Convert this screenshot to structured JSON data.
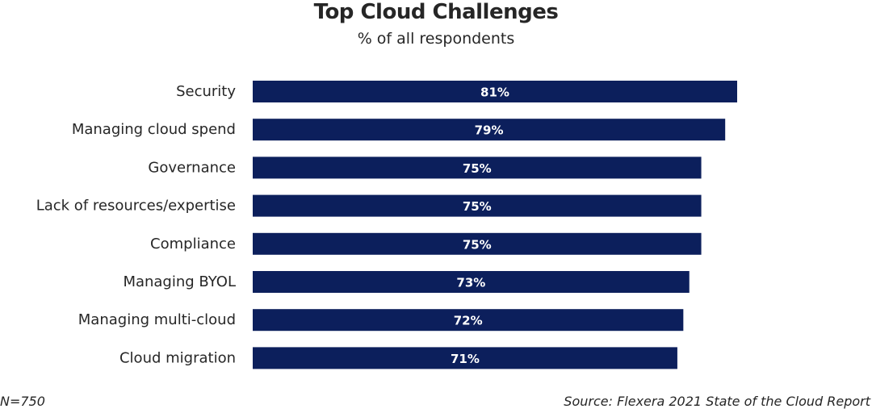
{
  "chart_data": {
    "type": "bar",
    "orientation": "horizontal",
    "title": "Top Cloud Challenges",
    "subtitle": "% of all respondents",
    "categories": [
      "Security",
      "Managing cloud spend",
      "Governance",
      "Lack of resources/expertise",
      "Compliance",
      "Managing BYOL",
      "Managing multi-cloud",
      "Cloud migration"
    ],
    "values": [
      81,
      79,
      75,
      75,
      75,
      73,
      72,
      71
    ],
    "value_labels": [
      "81%",
      "79%",
      "75%",
      "75%",
      "75%",
      "73%",
      "72%",
      "71%"
    ],
    "unit": "%",
    "xlim": [
      0,
      100
    ],
    "grid": false,
    "legend": "none",
    "bar_color": "#0c1f5c",
    "label_color": "#ffffff"
  },
  "footer": {
    "sample_size": "N=750",
    "source": "Source: Flexera 2021 State of the Cloud Report"
  }
}
